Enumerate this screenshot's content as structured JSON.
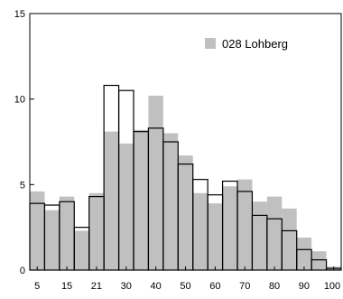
{
  "chart_data": {
    "type": "bar",
    "grid": false,
    "legend_position": "top-right",
    "ylim": [
      0,
      15
    ],
    "yticks": [
      0,
      5,
      10,
      15
    ],
    "xtick_labels": [
      "5",
      "15",
      "21",
      "30",
      "40",
      "50",
      "60",
      "70",
      "80",
      "90",
      "100"
    ],
    "categories": [
      "5",
      "10",
      "15",
      "20",
      "21",
      "25",
      "30",
      "35",
      "40",
      "45",
      "50",
      "55",
      "60",
      "65",
      "70",
      "75",
      "80",
      "85",
      "90",
      "95",
      "100"
    ],
    "series": [
      {
        "name": "028  Lohberg",
        "color": "#c0c0c0",
        "values": [
          4.6,
          3.5,
          4.3,
          2.3,
          4.5,
          8.1,
          7.4,
          8.2,
          10.2,
          8.0,
          6.7,
          4.5,
          3.9,
          4.9,
          5.3,
          4.0,
          4.3,
          3.6,
          1.9,
          1.1,
          0.2
        ]
      },
      {
        "name": "",
        "color": "#ffffff",
        "style": "outline",
        "values": [
          3.9,
          3.8,
          4.0,
          2.5,
          4.3,
          10.8,
          10.5,
          8.1,
          8.3,
          7.5,
          6.2,
          5.3,
          4.4,
          5.2,
          4.6,
          3.2,
          3.0,
          2.3,
          1.2,
          0.6,
          0.1
        ]
      }
    ]
  }
}
